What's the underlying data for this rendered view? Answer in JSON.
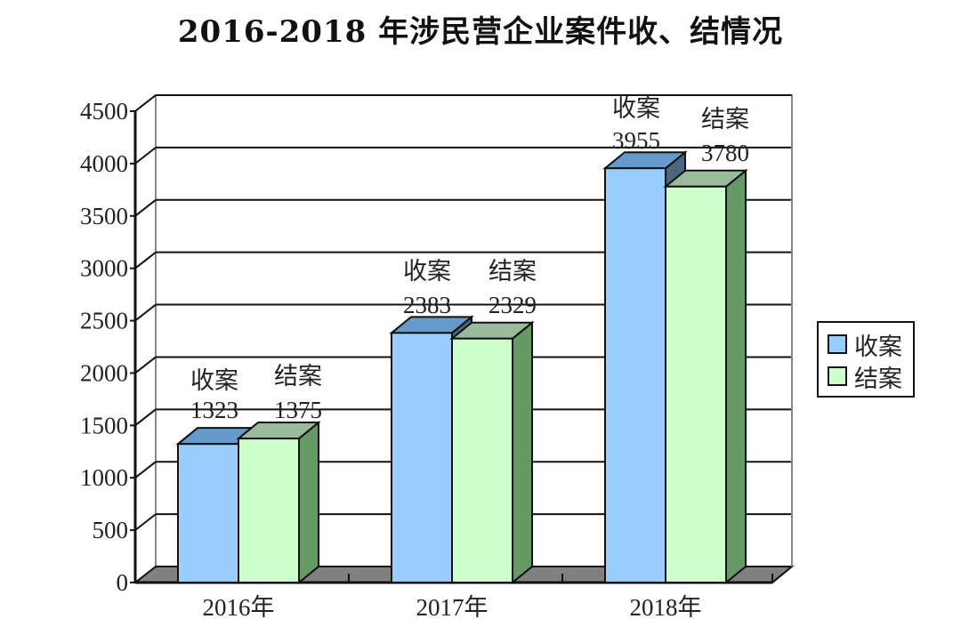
{
  "title": "2016-2018 年涉民营企业案件收、结情况",
  "legend": {
    "items": [
      {
        "label": "收案",
        "color": "#99ccff"
      },
      {
        "label": "结案",
        "color": "#ccffcc"
      }
    ]
  },
  "axis": {
    "y_ticks": [
      "0",
      "500",
      "1000",
      "1500",
      "2000",
      "2500",
      "3000",
      "3500",
      "4000",
      "4500"
    ],
    "x_categories": [
      "2016年",
      "2017年",
      "2018年"
    ]
  },
  "data_labels": {
    "y2016": {
      "recv_name": "收案",
      "recv_value": "1323",
      "close_name": "结案",
      "close_value": "1375"
    },
    "y2017": {
      "recv_name": "收案",
      "recv_value": "2383",
      "close_name": "结案",
      "close_value": "2329"
    },
    "y2018": {
      "recv_name": "收案",
      "recv_value": "3955",
      "close_name": "结案",
      "close_value": "3780"
    }
  },
  "colors": {
    "recv_front": "#99ccff",
    "recv_top": "#6699cc",
    "recv_side": "#4d6680",
    "close_front": "#ccffcc",
    "close_top": "#99bb99",
    "close_side": "#669966",
    "floor": "#808080",
    "grid": "#000000"
  },
  "chart_data": {
    "type": "bar",
    "title": "2016-2018 年涉民营企业案件收、结情况",
    "xlabel": "",
    "ylabel": "",
    "categories": [
      "2016年",
      "2017年",
      "2018年"
    ],
    "series": [
      {
        "name": "收案",
        "values": [
          1323,
          2383,
          3955
        ]
      },
      {
        "name": "结案",
        "values": [
          1375,
          2329,
          3780
        ]
      }
    ],
    "ylim": [
      0,
      4500
    ],
    "y_tick_step": 500,
    "grid": true,
    "legend_position": "right",
    "style": "3d clustered column"
  }
}
